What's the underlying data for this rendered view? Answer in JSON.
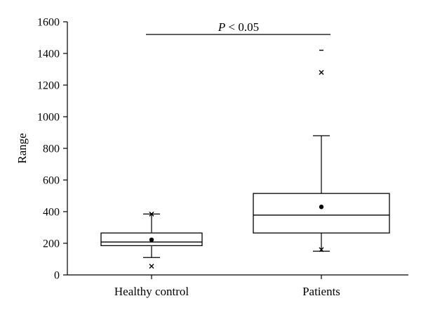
{
  "chart_data": {
    "type": "boxplot",
    "title": "",
    "xlabel": "",
    "ylabel": "Range",
    "ylim": [
      0,
      1600
    ],
    "yticks": [
      0,
      200,
      400,
      600,
      800,
      1000,
      1200,
      1400,
      1600
    ],
    "grid": false,
    "categories": [
      "Healthy control",
      "Patients"
    ],
    "series": [
      {
        "category": "Healthy control",
        "min": 110,
        "q1": 185,
        "median": 208,
        "q3": 265,
        "max": 385,
        "mean": 222,
        "outliers_x": [
          385,
          55
        ],
        "outliers_dash": []
      },
      {
        "category": "Patients",
        "min": 150,
        "q1": 265,
        "median": 378,
        "q3": 515,
        "max": 880,
        "mean": 430,
        "outliers_x": [
          1280,
          160
        ],
        "outliers_dash": [
          1420
        ]
      }
    ],
    "annotation": {
      "text_italic": "P",
      "text_rest": " < 0.05",
      "y": 1520
    }
  }
}
